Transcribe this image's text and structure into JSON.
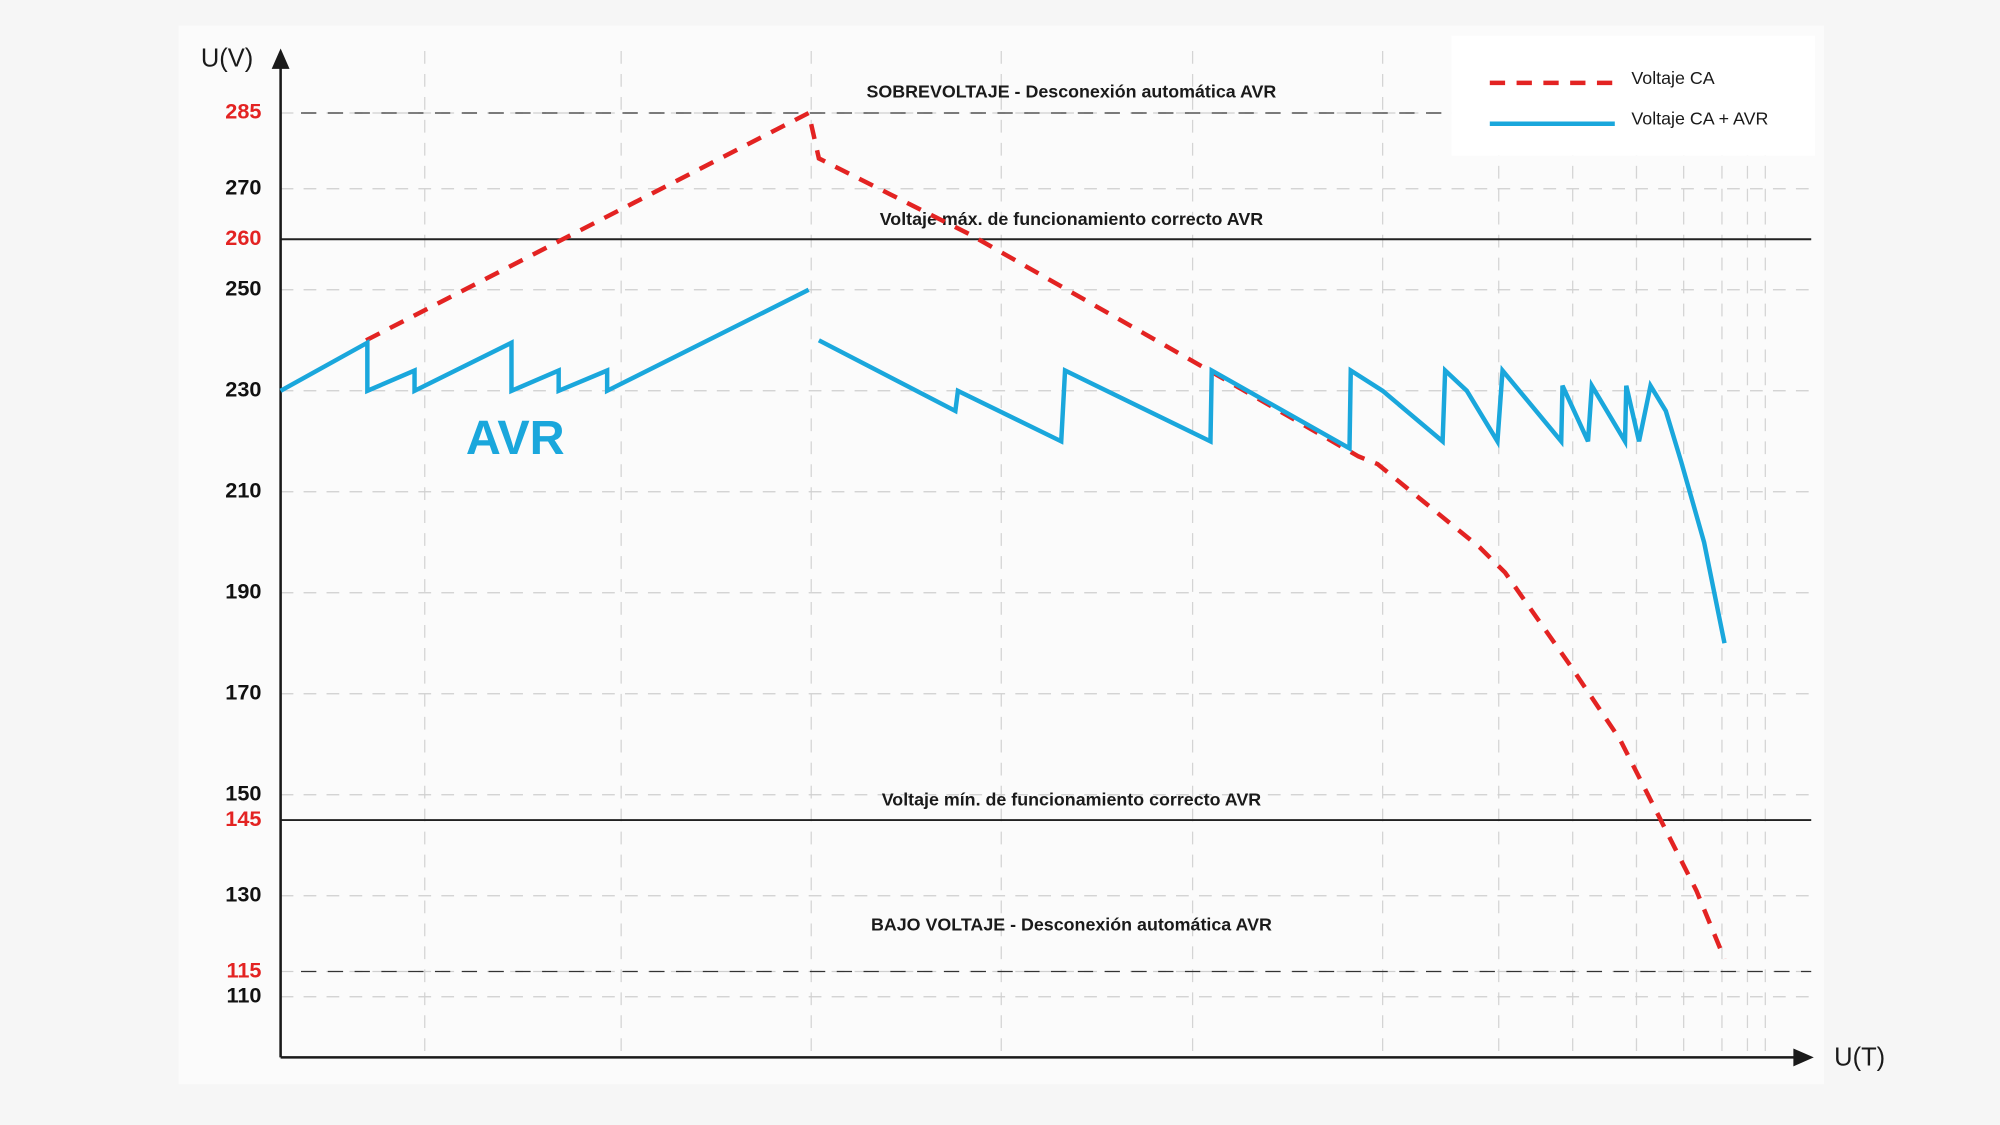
{
  "chart_data": {
    "type": "line",
    "xlabel": "U(T)",
    "ylabel": "U(V)",
    "xlim": [
      0,
      1200
    ],
    "ylim": [
      98,
      295
    ],
    "xticks": [
      113,
      267,
      416,
      565,
      715,
      864,
      955,
      1013,
      1063,
      1100,
      1130,
      1150,
      1164
    ],
    "yticks": [
      285,
      270,
      260,
      250,
      230,
      210,
      190,
      170,
      150,
      145,
      130,
      115,
      110
    ],
    "ytick_colors": [
      "#e32322",
      "#111111",
      "#e32322",
      "#111111",
      "#111111",
      "#111111",
      "#111111",
      "#111111",
      "#111111",
      "#e32322",
      "#111111",
      "#e32322",
      "#111111"
    ],
    "grid": true,
    "reference_lines": [
      {
        "value": 285,
        "label": "SOBREVOLTAJE - Desconexión automática AVR",
        "style": "dashed"
      },
      {
        "value": 260,
        "label": "Voltaje máx. de funcionamiento correcto AVR",
        "style": "solid"
      },
      {
        "value": 145,
        "label": "Voltaje mín. de funcionamiento correcto AVR",
        "style": "solid"
      },
      {
        "value": 115,
        "label": "BAJO VOLTAJE - Desconexión automática AVR",
        "style": "dashed"
      }
    ],
    "annotation": "AVR",
    "legend": "upper right",
    "series": [
      {
        "name": "Voltaje CA",
        "color": "#e32322",
        "style": "dashed",
        "x": [
          67,
          414,
          422,
          540,
          728,
          845,
          860,
          940,
          960,
          1010,
          1050,
          1080,
          1110,
          1132
        ],
        "values": [
          240,
          285,
          276,
          261,
          234,
          217,
          215.5,
          199,
          194,
          176,
          161,
          146,
          131,
          117.5
        ]
      },
      {
        "name": "Voltaje CA + AVR",
        "color": "#1aa7dc",
        "style": "solid",
        "x": [
          0,
          68,
          68,
          105,
          105,
          181,
          181,
          218,
          218,
          256,
          256,
          414,
          null,
          422,
          529,
          531,
          612,
          615,
          729,
          730,
          838,
          839,
          864,
          911,
          913,
          930,
          954,
          958,
          1004,
          1005,
          1025,
          1028,
          1054,
          1055,
          1065,
          1074,
          1086,
          1098,
          1116,
          1132
        ],
        "values": [
          230,
          239.5,
          230,
          234,
          230,
          239.5,
          230,
          234,
          230,
          234,
          230,
          250,
          null,
          240,
          226,
          230,
          220,
          234,
          220,
          234,
          218.6,
          234,
          230,
          220,
          234,
          230,
          220,
          234,
          220,
          231,
          220,
          231,
          220,
          231,
          220,
          231,
          226,
          216,
          200,
          180
        ]
      }
    ]
  }
}
